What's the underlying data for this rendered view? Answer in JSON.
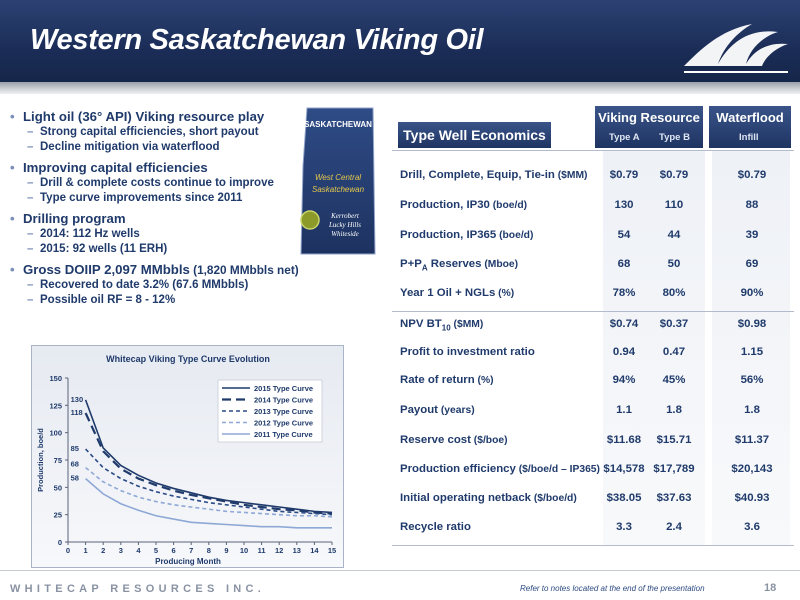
{
  "header": {
    "title": "Western Saskatchewan Viking Oil"
  },
  "bullets": [
    {
      "main": "Light oil (36° API) Viking resource play",
      "subs": [
        "Strong capital efficiencies, short payout",
        "Decline mitigation via waterflood"
      ]
    },
    {
      "main": "Improving capital efficiencies",
      "subs": [
        "Drill & complete costs continue to improve",
        "Type curve improvements since 2011"
      ]
    },
    {
      "main": "Drilling program",
      "subs": [
        "2014:  112 Hz wells",
        "2015:  92 wells (11 ERH)"
      ]
    },
    {
      "main": "Gross DOIIP 2,097 MMbbls",
      "main_extra": " (1,820 MMbbls net)",
      "subs": [
        "Recovered to date 3.2% (67.6 MMbbls)",
        "Possible oil RF = 8 - 12%"
      ]
    }
  ],
  "map": {
    "province": "SASKATCHEWAN",
    "region": "West Central Saskatchewan",
    "areas": [
      "Kerrobert",
      "Lucky Hills",
      "Whiteside"
    ]
  },
  "table": {
    "title": "Type Well Economics",
    "groups": [
      {
        "label": "Viking Resource",
        "subs": [
          "Type A",
          "Type B"
        ]
      },
      {
        "label": "Waterflood",
        "subs": [
          "Infill"
        ]
      }
    ],
    "rows": [
      {
        "label": "Drill, Complete, Equip, Tie-in",
        "unit": " ($MM)",
        "values": [
          "$0.79",
          "$0.79",
          "$0.79"
        ]
      },
      {
        "label": "Production, IP30",
        "unit": " (boe/d)",
        "values": [
          "130",
          "110",
          "88"
        ]
      },
      {
        "label": "Production, IP365",
        "unit": " (boe/d)",
        "values": [
          "54",
          "44",
          "39"
        ]
      },
      {
        "label": "P+P",
        "label_sub": "A",
        "label_tail": " Reserves",
        "unit": " (Mboe)",
        "values": [
          "68",
          "50",
          "69"
        ]
      },
      {
        "label": "Year 1 Oil + NGLs",
        "unit": " (%)",
        "values": [
          "78%",
          "80%",
          "90%"
        ]
      },
      {
        "label": "NPV BT",
        "label_sub": "10",
        "unit": " ($MM)",
        "values": [
          "$0.74",
          "$0.37",
          "$0.98"
        ]
      },
      {
        "label": "Profit to investment ratio",
        "unit": "",
        "values": [
          "0.94",
          "0.47",
          "1.15"
        ]
      },
      {
        "label": "Rate of return",
        "unit": " (%)",
        "values": [
          "94%",
          "45%",
          "56%"
        ]
      },
      {
        "label": "Payout",
        "unit": " (years)",
        "values": [
          "1.1",
          "1.8",
          "1.8"
        ]
      },
      {
        "label": "Reserve cost",
        "unit": " ($/boe)",
        "values": [
          "$11.68",
          "$15.71",
          "$11.37"
        ]
      },
      {
        "label": "Production efficiency",
        "unit": " ($/boe/d – IP365)",
        "values": [
          "$14,578",
          "$17,789",
          "$20,143"
        ]
      },
      {
        "label": "Initial operating netback",
        "unit": " ($/boe/d)",
        "values": [
          "$38.05",
          "$37.63",
          "$40.93"
        ]
      },
      {
        "label": "Recycle ratio",
        "unit": "",
        "values": [
          "3.3",
          "2.4",
          "3.6"
        ]
      }
    ]
  },
  "chart_data": {
    "type": "line",
    "title": "Whitecap Viking Type Curve Evolution",
    "xlabel": "Producing Month",
    "ylabel": "Production, boe/d",
    "xlim": [
      0,
      15
    ],
    "ylim": [
      0,
      150
    ],
    "xticks": [
      0,
      1,
      2,
      3,
      4,
      5,
      6,
      7,
      8,
      9,
      10,
      11,
      12,
      13,
      14,
      15
    ],
    "yticks": [
      0,
      25,
      50,
      75,
      100,
      125,
      150
    ],
    "legend_position": "top-right",
    "grid": false,
    "annotations": [
      "130",
      "118",
      "85",
      "68",
      "58"
    ],
    "series": [
      {
        "name": "2015 Type Curve",
        "color": "#1f3a6b",
        "dash": "solid",
        "x": [
          1,
          2,
          3,
          4,
          5,
          6,
          7,
          8,
          9,
          10,
          11,
          12,
          13,
          14,
          15
        ],
        "y": [
          130,
          86,
          70,
          61,
          54,
          49,
          45,
          41,
          38,
          36,
          34,
          32,
          30,
          28,
          27
        ]
      },
      {
        "name": "2014 Type Curve",
        "color": "#1f3a6b",
        "dash": "long",
        "x": [
          1,
          2,
          3,
          4,
          5,
          6,
          7,
          8,
          9,
          10,
          11,
          12,
          13,
          14,
          15
        ],
        "y": [
          118,
          83,
          67,
          58,
          52,
          47,
          43,
          40,
          37,
          34,
          32,
          30,
          29,
          27,
          26
        ]
      },
      {
        "name": "2013 Type Curve",
        "color": "#2a4a85",
        "dash": "short",
        "x": [
          1,
          2,
          3,
          4,
          5,
          6,
          7,
          8,
          9,
          10,
          11,
          12,
          13,
          14,
          15
        ],
        "y": [
          85,
          68,
          58,
          51,
          46,
          42,
          39,
          36,
          34,
          32,
          30,
          28,
          27,
          26,
          25
        ]
      },
      {
        "name": "2012 Type Curve",
        "color": "#8ea8d6",
        "dash": "short",
        "x": [
          1,
          2,
          3,
          4,
          5,
          6,
          7,
          8,
          9,
          10,
          11,
          12,
          13,
          14,
          15
        ],
        "y": [
          68,
          55,
          47,
          41,
          37,
          34,
          32,
          30,
          28,
          27,
          26,
          25,
          24,
          24,
          23
        ]
      },
      {
        "name": "2011 Type Curve",
        "color": "#8ea8d6",
        "dash": "solid",
        "x": [
          1,
          2,
          3,
          4,
          5,
          6,
          7,
          8,
          9,
          10,
          11,
          12,
          13,
          14,
          15
        ],
        "y": [
          58,
          44,
          35,
          29,
          24,
          21,
          18,
          17,
          16,
          15,
          14,
          14,
          13,
          13,
          13
        ]
      }
    ]
  },
  "footer": {
    "company": "WHITECAP RESOURCES INC.",
    "note": "Refer to notes located at the end of the presentation",
    "page": "18"
  }
}
